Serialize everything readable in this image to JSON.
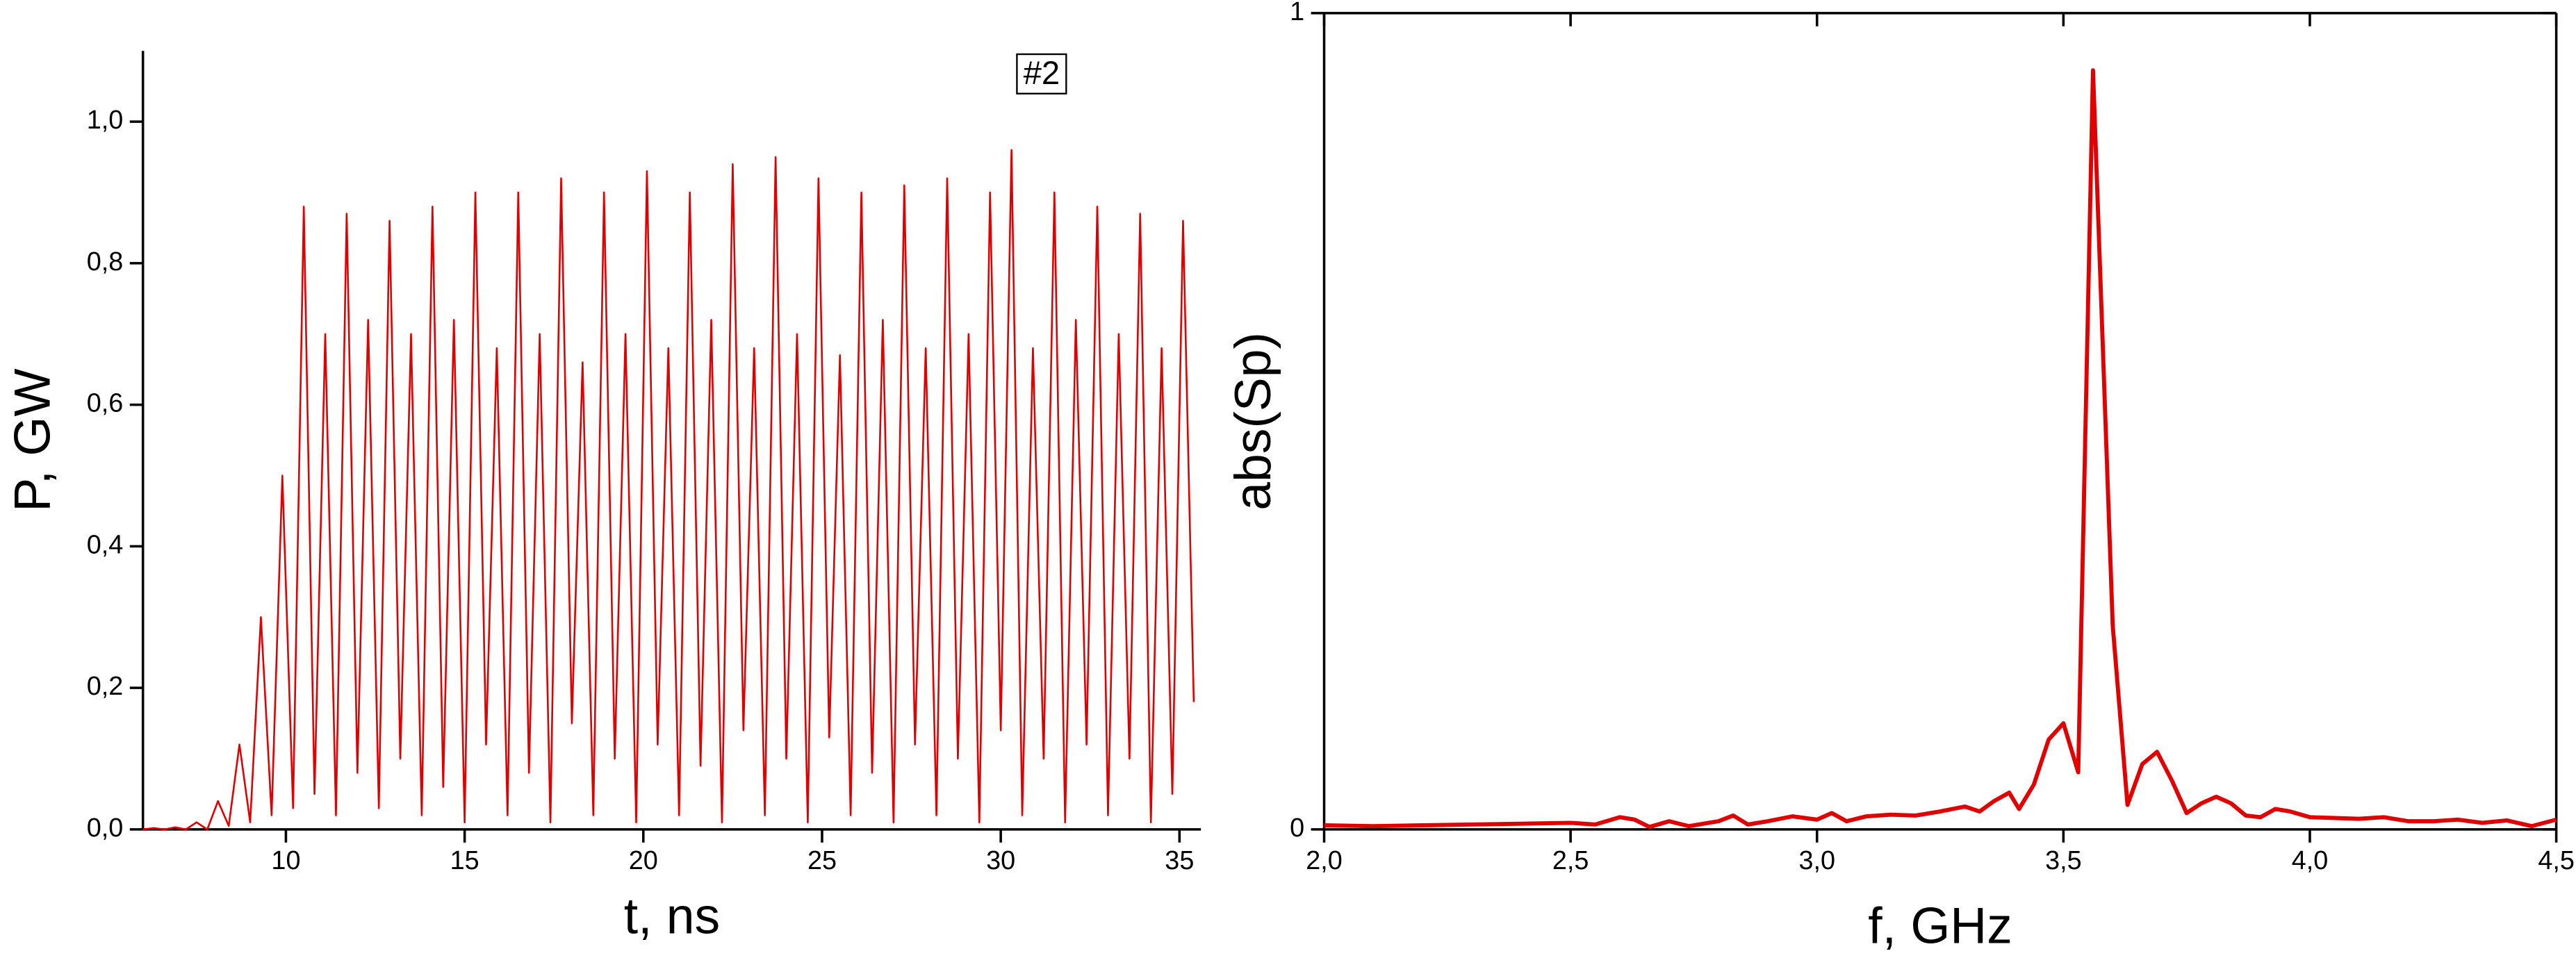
{
  "chart_data": [
    {
      "type": "line",
      "xlabel": "t, ns",
      "ylabel": "P, GW",
      "annotation": "#2",
      "color": "#e00000",
      "spines": [
        "left",
        "bottom"
      ],
      "xlim": [
        6,
        35.6
      ],
      "xticks": [
        10,
        15,
        20,
        25,
        30,
        35
      ],
      "ylim": [
        0,
        1.1
      ],
      "yticks": [
        {
          "value": 0,
          "label": "0,0"
        },
        {
          "value": 0.2,
          "label": "0,2"
        },
        {
          "value": 0.4,
          "label": "0,4"
        },
        {
          "value": 0.6,
          "label": "0,6"
        },
        {
          "value": 0.8,
          "label": "0,8"
        },
        {
          "value": 1.0,
          "label": "1,0"
        }
      ],
      "x": [
        6.0,
        6.3,
        6.6,
        6.9,
        7.2,
        7.5,
        7.8,
        8.1,
        8.4,
        8.7,
        9.0,
        9.3,
        9.6,
        9.9,
        10.2,
        10.5,
        10.8,
        11.1,
        11.4,
        11.7,
        12.0,
        12.3,
        12.6,
        12.9,
        13.2,
        13.5,
        13.8,
        14.1,
        14.4,
        14.7,
        15.0,
        15.3,
        15.6,
        15.9,
        16.2,
        16.5,
        16.8,
        17.1,
        17.4,
        17.7,
        18.0,
        18.3,
        18.6,
        18.9,
        19.2,
        19.5,
        19.8,
        20.1,
        20.4,
        20.7,
        21.0,
        21.3,
        21.6,
        21.9,
        22.2,
        22.5,
        22.8,
        23.1,
        23.4,
        23.7,
        24.0,
        24.3,
        24.6,
        24.9,
        25.2,
        25.5,
        25.8,
        26.1,
        26.4,
        26.7,
        27.0,
        27.3,
        27.6,
        27.9,
        28.2,
        28.5,
        28.8,
        29.1,
        29.4,
        29.7,
        30.0,
        30.3,
        30.6,
        30.9,
        31.2,
        31.5,
        31.8,
        32.1,
        32.4,
        32.7,
        33.0,
        33.3,
        33.6,
        33.9,
        34.2,
        34.5,
        34.8,
        35.1,
        35.4
      ],
      "values": [
        0,
        0.002,
        0,
        0.003,
        0,
        0.01,
        0,
        0.04,
        0.005,
        0.12,
        0.01,
        0.3,
        0.02,
        0.5,
        0.03,
        0.88,
        0.05,
        0.7,
        0.02,
        0.87,
        0.08,
        0.72,
        0.03,
        0.86,
        0.1,
        0.7,
        0.02,
        0.88,
        0.06,
        0.72,
        0.01,
        0.9,
        0.12,
        0.68,
        0.02,
        0.9,
        0.08,
        0.7,
        0.01,
        0.92,
        0.15,
        0.66,
        0.02,
        0.9,
        0.1,
        0.7,
        0.01,
        0.93,
        0.12,
        0.68,
        0.02,
        0.9,
        0.09,
        0.72,
        0.01,
        0.94,
        0.14,
        0.68,
        0.02,
        0.95,
        0.1,
        0.7,
        0.01,
        0.92,
        0.13,
        0.67,
        0.02,
        0.9,
        0.08,
        0.72,
        0.01,
        0.91,
        0.12,
        0.68,
        0.02,
        0.92,
        0.1,
        0.7,
        0.01,
        0.9,
        0.14,
        0.96,
        0.02,
        0.68,
        0.1,
        0.9,
        0.01,
        0.72,
        0.12,
        0.88,
        0.02,
        0.7,
        0.1,
        0.87,
        0.01,
        0.68,
        0.05,
        0.86,
        0.18
      ]
    },
    {
      "type": "line",
      "xlabel": "f, GHz",
      "ylabel": "abs(Sp)",
      "color": "#e00000",
      "spines": [
        "left",
        "bottom",
        "top",
        "right"
      ],
      "xlim": [
        2,
        4.5
      ],
      "xticks": [
        {
          "value": 2.0,
          "label": "2,0"
        },
        {
          "value": 2.5,
          "label": "2,5"
        },
        {
          "value": 3.0,
          "label": "3,0"
        },
        {
          "value": 3.5,
          "label": "3,5"
        },
        {
          "value": 4.0,
          "label": "4,0"
        },
        {
          "value": 4.5,
          "label": "4,5"
        }
      ],
      "ylim": [
        0,
        1
      ],
      "yticks": [
        0,
        1
      ],
      "x": [
        2.0,
        2.1,
        2.2,
        2.3,
        2.4,
        2.5,
        2.55,
        2.6,
        2.63,
        2.66,
        2.7,
        2.74,
        2.8,
        2.83,
        2.86,
        2.9,
        2.95,
        3.0,
        3.03,
        3.06,
        3.1,
        3.15,
        3.2,
        3.25,
        3.3,
        3.33,
        3.36,
        3.39,
        3.41,
        3.44,
        3.47,
        3.5,
        3.53,
        3.56,
        3.6,
        3.63,
        3.66,
        3.69,
        3.72,
        3.75,
        3.78,
        3.81,
        3.84,
        3.87,
        3.9,
        3.93,
        3.96,
        4.0,
        4.1,
        4.15,
        4.2,
        4.25,
        4.3,
        4.35,
        4.4,
        4.45,
        4.5
      ],
      "values": [
        0.005,
        0.004,
        0.005,
        0.006,
        0.007,
        0.008,
        0.006,
        0.015,
        0.012,
        0.003,
        0.01,
        0.004,
        0.01,
        0.017,
        0.006,
        0.01,
        0.016,
        0.012,
        0.02,
        0.01,
        0.016,
        0.018,
        0.017,
        0.022,
        0.028,
        0.022,
        0.035,
        0.045,
        0.025,
        0.055,
        0.11,
        0.13,
        0.07,
        0.93,
        0.25,
        0.03,
        0.08,
        0.095,
        0.06,
        0.02,
        0.032,
        0.04,
        0.032,
        0.017,
        0.015,
        0.025,
        0.022,
        0.015,
        0.013,
        0.015,
        0.01,
        0.01,
        0.012,
        0.008,
        0.011,
        0.004,
        0.012
      ]
    }
  ]
}
